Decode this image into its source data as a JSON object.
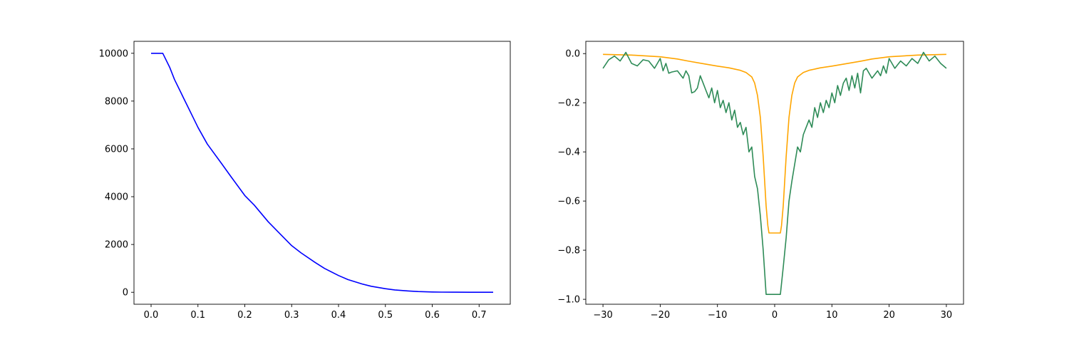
{
  "chart_data": [
    {
      "type": "line",
      "title": "",
      "xlabel": "",
      "ylabel": "",
      "xlim": [
        -0.0365,
        0.7665
      ],
      "ylim": [
        -500,
        10500
      ],
      "xticks": [
        0.0,
        0.1,
        0.2,
        0.3,
        0.4,
        0.5,
        0.6,
        0.7
      ],
      "xtick_labels": [
        "0.0",
        "0.1",
        "0.2",
        "0.3",
        "0.4",
        "0.5",
        "0.6",
        "0.7"
      ],
      "yticks": [
        0,
        2000,
        4000,
        6000,
        8000,
        10000
      ],
      "ytick_labels": [
        "0",
        "2000",
        "4000",
        "6000",
        "8000",
        "10000"
      ],
      "grid": false,
      "series": [
        {
          "color": "#0000ff",
          "x": [
            0.0,
            0.01,
            0.025,
            0.04,
            0.05,
            0.06,
            0.07,
            0.08,
            0.09,
            0.1,
            0.12,
            0.15,
            0.17,
            0.2,
            0.22,
            0.25,
            0.27,
            0.3,
            0.32,
            0.35,
            0.37,
            0.4,
            0.42,
            0.45,
            0.47,
            0.5,
            0.52,
            0.55,
            0.57,
            0.6,
            0.62,
            0.65,
            0.68,
            0.7,
            0.73
          ],
          "y": [
            10000,
            10000,
            10000,
            9400,
            8900,
            8500,
            8100,
            7700,
            7300,
            6900,
            6200,
            5400,
            4850,
            4050,
            3650,
            2950,
            2550,
            1950,
            1650,
            1250,
            1000,
            700,
            530,
            350,
            250,
            150,
            100,
            55,
            30,
            12,
            6,
            3,
            2,
            1,
            0
          ]
        }
      ]
    },
    {
      "type": "line",
      "title": "",
      "xlabel": "",
      "ylabel": "",
      "xlim": [
        -33,
        33
      ],
      "ylim": [
        -1.02,
        0.05
      ],
      "xticks": [
        -30,
        -20,
        -10,
        0,
        10,
        20,
        30
      ],
      "xtick_labels": [
        "−30",
        "−20",
        "−10",
        "0",
        "10",
        "20",
        "30"
      ],
      "yticks": [
        0.0,
        -0.2,
        -0.4,
        -0.6,
        -0.8,
        -1.0
      ],
      "ytick_labels": [
        "0.0",
        "−0.2",
        "−0.4",
        "−0.6",
        "−0.8",
        "−1.0"
      ],
      "grid": false,
      "series": [
        {
          "color": "#ffa500",
          "x": [
            -30,
            -25,
            -20,
            -17,
            -15,
            -12,
            -10,
            -8,
            -6,
            -5,
            -4,
            -3.5,
            -3,
            -2.5,
            -2,
            -1.5,
            -1.2,
            -1,
            1,
            1.2,
            1.5,
            2,
            2.5,
            3,
            3.5,
            4,
            5,
            6,
            8,
            10,
            12,
            15,
            17,
            20,
            25,
            30
          ],
          "y": [
            -0.003,
            -0.006,
            -0.013,
            -0.022,
            -0.031,
            -0.043,
            -0.051,
            -0.058,
            -0.068,
            -0.077,
            -0.095,
            -0.12,
            -0.17,
            -0.26,
            -0.42,
            -0.62,
            -0.7,
            -0.73,
            -0.73,
            -0.7,
            -0.62,
            -0.42,
            -0.26,
            -0.17,
            -0.12,
            -0.095,
            -0.077,
            -0.068,
            -0.058,
            -0.051,
            -0.043,
            -0.031,
            -0.022,
            -0.013,
            -0.006,
            -0.003
          ]
        },
        {
          "color": "#2e8b57",
          "x": [
            -30,
            -29,
            -28,
            -27,
            -26,
            -25,
            -24,
            -23,
            -22,
            -21,
            -20,
            -19.5,
            -19,
            -18.5,
            -18,
            -17,
            -16,
            -15.5,
            -15,
            -14.5,
            -14,
            -13.5,
            -13,
            -12.5,
            -12,
            -11.5,
            -11,
            -10.5,
            -10,
            -9.5,
            -9,
            -8.5,
            -8,
            -7.5,
            -7,
            -6.5,
            -6,
            -5.5,
            -5,
            -4.5,
            -4,
            -3.5,
            -3,
            -2.5,
            -2,
            -1.5,
            -1,
            1,
            1.5,
            2,
            2.5,
            3,
            3.5,
            4,
            4.5,
            5,
            5.5,
            6,
            6.5,
            7,
            7.5,
            8,
            8.5,
            9,
            9.5,
            10,
            10.5,
            11,
            11.5,
            12,
            12.5,
            13,
            13.5,
            14,
            14.5,
            15,
            15.5,
            16,
            17,
            18,
            18.5,
            19,
            19.5,
            20,
            21,
            22,
            23,
            24,
            25,
            26,
            27,
            28,
            29,
            30
          ],
          "y": [
            -0.06,
            -0.025,
            -0.01,
            -0.03,
            0.005,
            -0.04,
            -0.05,
            -0.025,
            -0.03,
            -0.06,
            -0.02,
            -0.07,
            -0.04,
            -0.08,
            -0.075,
            -0.07,
            -0.1,
            -0.07,
            -0.09,
            -0.16,
            -0.155,
            -0.14,
            -0.09,
            -0.12,
            -0.15,
            -0.18,
            -0.14,
            -0.2,
            -0.15,
            -0.22,
            -0.19,
            -0.24,
            -0.2,
            -0.27,
            -0.23,
            -0.3,
            -0.28,
            -0.33,
            -0.3,
            -0.4,
            -0.38,
            -0.5,
            -0.55,
            -0.66,
            -0.8,
            -0.98,
            -0.98,
            -0.98,
            -0.87,
            -0.75,
            -0.6,
            -0.52,
            -0.45,
            -0.38,
            -0.4,
            -0.33,
            -0.3,
            -0.27,
            -0.3,
            -0.22,
            -0.26,
            -0.2,
            -0.24,
            -0.19,
            -0.22,
            -0.16,
            -0.2,
            -0.13,
            -0.17,
            -0.12,
            -0.1,
            -0.15,
            -0.09,
            -0.14,
            -0.08,
            -0.16,
            -0.07,
            -0.06,
            -0.1,
            -0.07,
            -0.09,
            -0.05,
            -0.08,
            -0.02,
            -0.06,
            -0.03,
            -0.05,
            -0.02,
            -0.04,
            0.005,
            -0.03,
            -0.01,
            -0.04,
            -0.06
          ]
        }
      ]
    }
  ]
}
